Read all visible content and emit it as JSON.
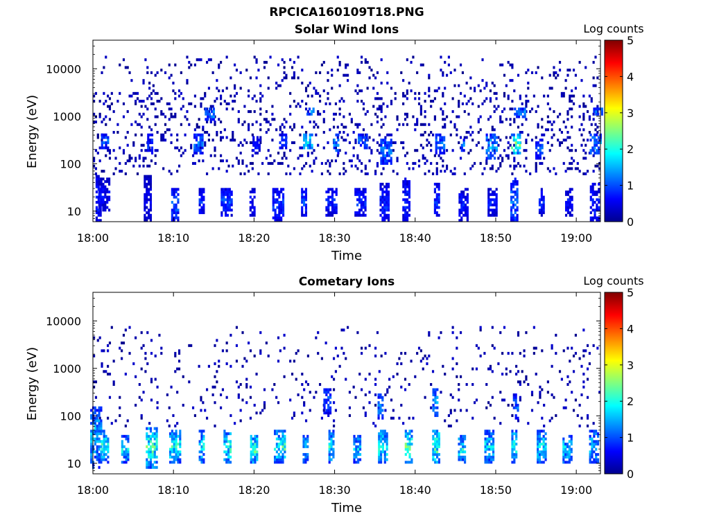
{
  "figure_title": "RPCICA160109T18.PNG",
  "chart_data": [
    {
      "type": "heatmap",
      "title": "Solar Wind Ions",
      "xlabel": "Time",
      "ylabel": "Energy (eV)",
      "x_ticks": [
        "18:00",
        "18:10",
        "18:20",
        "18:30",
        "18:40",
        "18:50",
        "19:00"
      ],
      "x_range": [
        "18:00",
        "19:03"
      ],
      "y_scale": "log",
      "y_ticks": [
        10,
        100,
        1000,
        10000
      ],
      "y_range": [
        6,
        40000
      ],
      "colorbar": {
        "label": "Log counts",
        "range": [
          0,
          5
        ],
        "ticks": [
          0,
          1,
          2,
          3,
          4,
          5
        ]
      },
      "colorscale": "jet",
      "blobs": [
        {
          "t": 0.7,
          "e": [
            5,
            60
          ],
          "level": 0.9
        },
        {
          "t": 1.4,
          "e": [
            10,
            50
          ],
          "level": 0.7
        },
        {
          "t": 6.8,
          "e": [
            5,
            60
          ],
          "level": 0.6
        },
        {
          "t": 10.2,
          "e": [
            6,
            30
          ],
          "level": 1.2
        },
        {
          "t": 13.5,
          "e": [
            8,
            30
          ],
          "level": 0.9
        },
        {
          "t": 16.6,
          "e": [
            8,
            30
          ],
          "level": 1.1
        },
        {
          "t": 19.8,
          "e": [
            8,
            30
          ],
          "level": 0.8
        },
        {
          "t": 23.0,
          "e": [
            6,
            30
          ],
          "level": 1.0
        },
        {
          "t": 26.2,
          "e": [
            8,
            30
          ],
          "level": 1.1
        },
        {
          "t": 29.6,
          "e": [
            8,
            30
          ],
          "level": 0.9
        },
        {
          "t": 33.2,
          "e": [
            8,
            30
          ],
          "level": 1.0
        },
        {
          "t": 36.2,
          "e": [
            5,
            40
          ],
          "level": 0.9
        },
        {
          "t": 38.9,
          "e": [
            5,
            50
          ],
          "level": 0.9
        },
        {
          "t": 42.7,
          "e": [
            8,
            40
          ],
          "level": 1.0
        },
        {
          "t": 46.0,
          "e": [
            6,
            30
          ],
          "level": 0.8
        },
        {
          "t": 49.6,
          "e": [
            8,
            30
          ],
          "level": 0.8
        },
        {
          "t": 52.3,
          "e": [
            5,
            50
          ],
          "level": 1.3
        },
        {
          "t": 55.7,
          "e": [
            8,
            30
          ],
          "level": 0.9
        },
        {
          "t": 59.1,
          "e": [
            8,
            30
          ],
          "level": 0.8
        },
        {
          "t": 62.3,
          "e": [
            5,
            40
          ],
          "level": 0.9
        },
        {
          "t": 1.5,
          "e": [
            200,
            450
          ],
          "level": 1.2
        },
        {
          "t": 7.1,
          "e": [
            150,
            450
          ],
          "level": 1.0
        },
        {
          "t": 13.1,
          "e": [
            150,
            450
          ],
          "level": 1.3
        },
        {
          "t": 14.5,
          "e": [
            800,
            1600
          ],
          "level": 1.5
        },
        {
          "t": 20.3,
          "e": [
            150,
            400
          ],
          "level": 0.8
        },
        {
          "t": 23.6,
          "e": [
            200,
            450
          ],
          "level": 1.0
        },
        {
          "t": 26.7,
          "e": [
            200,
            450
          ],
          "level": 2.0
        },
        {
          "t": 27.0,
          "e": [
            1000,
            1600
          ],
          "level": 1.6
        },
        {
          "t": 30.2,
          "e": [
            150,
            450
          ],
          "level": 1.5
        },
        {
          "t": 33.5,
          "e": [
            200,
            450
          ],
          "level": 1.2
        },
        {
          "t": 36.4,
          "e": [
            100,
            350
          ],
          "level": 1.4
        },
        {
          "t": 43.1,
          "e": [
            150,
            450
          ],
          "level": 1.3
        },
        {
          "t": 45.8,
          "e": [
            180,
            350
          ],
          "level": 1.3
        },
        {
          "t": 49.5,
          "e": [
            120,
            450
          ],
          "level": 1.6
        },
        {
          "t": 52.5,
          "e": [
            150,
            450
          ],
          "level": 2.6
        },
        {
          "t": 53.0,
          "e": [
            900,
            1600
          ],
          "level": 1.4
        },
        {
          "t": 55.4,
          "e": [
            120,
            350
          ],
          "level": 1.1
        },
        {
          "t": 62.4,
          "e": [
            150,
            450
          ],
          "level": 1.5
        },
        {
          "t": 62.7,
          "e": [
            1000,
            1600
          ],
          "level": 1.4
        }
      ],
      "background_density": 0.12,
      "background_energy_range": [
        60,
        20000
      ],
      "seed": 11
    },
    {
      "type": "heatmap",
      "title": "Cometary Ions",
      "xlabel": "Time",
      "ylabel": "Energy (eV)",
      "x_ticks": [
        "18:00",
        "18:10",
        "18:20",
        "18:30",
        "18:40",
        "18:50",
        "19:00"
      ],
      "x_range": [
        "18:00",
        "19:03"
      ],
      "y_scale": "log",
      "y_ticks": [
        10,
        100,
        1000,
        10000
      ],
      "y_range": [
        6,
        40000
      ],
      "colorbar": {
        "label": "Log counts",
        "range": [
          0,
          5
        ],
        "ticks": [
          0,
          1,
          2,
          3,
          4,
          5
        ]
      },
      "colorscale": "jet",
      "blobs": [
        {
          "t": 0.4,
          "e": [
            8,
            150
          ],
          "level": 1.8
        },
        {
          "t": 1.5,
          "e": [
            10,
            50
          ],
          "level": 2.2
        },
        {
          "t": 4.0,
          "e": [
            10,
            40
          ],
          "level": 1.9
        },
        {
          "t": 7.3,
          "e": [
            8,
            60
          ],
          "level": 2.4
        },
        {
          "t": 10.2,
          "e": [
            10,
            50
          ],
          "level": 2.2
        },
        {
          "t": 13.5,
          "e": [
            10,
            50
          ],
          "level": 2.0
        },
        {
          "t": 16.7,
          "e": [
            10,
            50
          ],
          "level": 2.3
        },
        {
          "t": 20.0,
          "e": [
            10,
            40
          ],
          "level": 2.5
        },
        {
          "t": 23.2,
          "e": [
            10,
            50
          ],
          "level": 2.3
        },
        {
          "t": 26.4,
          "e": [
            10,
            40
          ],
          "level": 1.8
        },
        {
          "t": 29.6,
          "e": [
            10,
            50
          ],
          "level": 2.1
        },
        {
          "t": 32.8,
          "e": [
            10,
            40
          ],
          "level": 1.8
        },
        {
          "t": 36.0,
          "e": [
            10,
            50
          ],
          "level": 2.2
        },
        {
          "t": 39.2,
          "e": [
            10,
            50
          ],
          "level": 2.4
        },
        {
          "t": 42.6,
          "e": [
            10,
            50
          ],
          "level": 2.5
        },
        {
          "t": 45.8,
          "e": [
            10,
            40
          ],
          "level": 2.0
        },
        {
          "t": 49.2,
          "e": [
            10,
            50
          ],
          "level": 1.9
        },
        {
          "t": 52.3,
          "e": [
            10,
            50
          ],
          "level": 2.2
        },
        {
          "t": 55.7,
          "e": [
            10,
            50
          ],
          "level": 2.0
        },
        {
          "t": 58.9,
          "e": [
            10,
            40
          ],
          "level": 1.9
        },
        {
          "t": 62.2,
          "e": [
            10,
            50
          ],
          "level": 1.8
        },
        {
          "t": 29.1,
          "e": [
            100,
            400
          ],
          "level": 1.2
        },
        {
          "t": 35.7,
          "e": [
            80,
            300
          ],
          "level": 1.5
        },
        {
          "t": 42.5,
          "e": [
            100,
            400
          ],
          "level": 1.6
        },
        {
          "t": 52.5,
          "e": [
            80,
            300
          ],
          "level": 1.2
        }
      ],
      "background_density": 0.055,
      "background_energy_range": [
        60,
        8000
      ],
      "seed": 29
    }
  ]
}
